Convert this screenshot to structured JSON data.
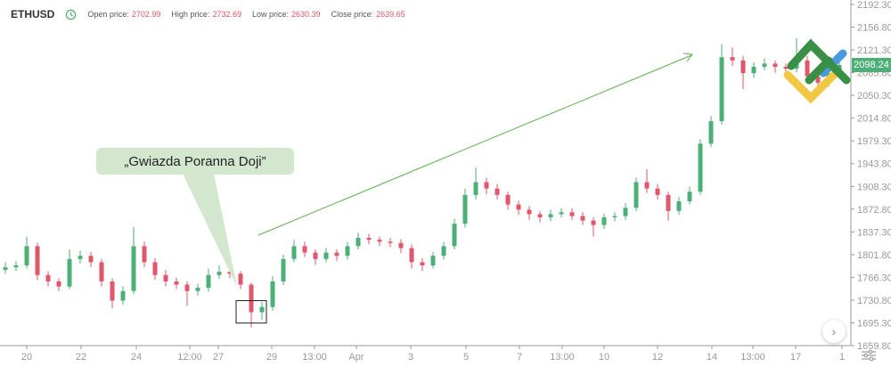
{
  "header": {
    "symbol": "ETHUSD",
    "open_label": "Open price:",
    "open_value": "2702.99",
    "high_label": "High price:",
    "high_value": "2732.69",
    "low_label": "Low price:",
    "low_value": "2630.39",
    "close_label": "Close price:",
    "close_value": "2639.65"
  },
  "annotation": {
    "callout_text": "„Gwiazda Poranna Doji”"
  },
  "current_price": "2098.24",
  "colors": {
    "up": "#4caf76",
    "down": "#e0566a",
    "arrow": "#5aae4a",
    "callout_bg": "#d3e7cf"
  },
  "icons": {
    "clock": "clock-icon",
    "scroll": "chevron-right-icon",
    "settings": "sliders-icon"
  },
  "chart_data": {
    "type": "candlestick",
    "y_ticks": [
      "2192.30",
      "2156.80",
      "2121.30",
      "2085.80",
      "2050.30",
      "2014.80",
      "1979.30",
      "1943.80",
      "1908.30",
      "1872.80",
      "1837.30",
      "1801.80",
      "1766.30",
      "1730.80",
      "1695.30",
      "1659.80"
    ],
    "ylim": [
      1659.8,
      2192.3
    ],
    "x_ticks": [
      "20",
      "22",
      "24",
      "12:00",
      "27",
      "29",
      "13:00",
      "Apr",
      "3",
      "5",
      "7",
      "13:00",
      "10",
      "12",
      "14",
      "13:00",
      "17",
      "1"
    ],
    "ohlc": [
      [
        1778,
        1790,
        1772,
        1782
      ],
      [
        1782,
        1792,
        1776,
        1785
      ],
      [
        1785,
        1830,
        1780,
        1815
      ],
      [
        1815,
        1820,
        1762,
        1770
      ],
      [
        1770,
        1776,
        1752,
        1760
      ],
      [
        1760,
        1765,
        1745,
        1752
      ],
      [
        1752,
        1810,
        1748,
        1795
      ],
      [
        1795,
        1808,
        1788,
        1800
      ],
      [
        1800,
        1806,
        1782,
        1790
      ],
      [
        1790,
        1795,
        1752,
        1760
      ],
      [
        1760,
        1765,
        1718,
        1730
      ],
      [
        1730,
        1752,
        1724,
        1745
      ],
      [
        1745,
        1845,
        1740,
        1815
      ],
      [
        1815,
        1822,
        1782,
        1790
      ],
      [
        1790,
        1796,
        1762,
        1770
      ],
      [
        1770,
        1778,
        1752,
        1760
      ],
      [
        1760,
        1766,
        1748,
        1755
      ],
      [
        1755,
        1760,
        1722,
        1745
      ],
      [
        1745,
        1756,
        1738,
        1750
      ],
      [
        1750,
        1780,
        1744,
        1770
      ],
      [
        1770,
        1785,
        1764,
        1775
      ],
      [
        1775,
        1782,
        1765,
        1772
      ],
      [
        1772,
        1776,
        1748,
        1755
      ],
      [
        1755,
        1758,
        1688,
        1712
      ],
      [
        1712,
        1728,
        1700,
        1720
      ],
      [
        1720,
        1768,
        1714,
        1760
      ],
      [
        1760,
        1802,
        1754,
        1795
      ],
      [
        1795,
        1825,
        1790,
        1815
      ],
      [
        1815,
        1822,
        1798,
        1805
      ],
      [
        1805,
        1810,
        1786,
        1795
      ],
      [
        1795,
        1812,
        1790,
        1805
      ],
      [
        1805,
        1810,
        1792,
        1800
      ],
      [
        1800,
        1822,
        1794,
        1815
      ],
      [
        1815,
        1836,
        1810,
        1828
      ],
      [
        1828,
        1834,
        1818,
        1825
      ],
      [
        1825,
        1830,
        1815,
        1822
      ],
      [
        1822,
        1828,
        1814,
        1820
      ],
      [
        1820,
        1826,
        1804,
        1812
      ],
      [
        1812,
        1818,
        1780,
        1790
      ],
      [
        1790,
        1796,
        1776,
        1785
      ],
      [
        1785,
        1806,
        1780,
        1800
      ],
      [
        1800,
        1822,
        1794,
        1815
      ],
      [
        1815,
        1858,
        1810,
        1850
      ],
      [
        1850,
        1905,
        1844,
        1895
      ],
      [
        1895,
        1938,
        1888,
        1915
      ],
      [
        1915,
        1922,
        1896,
        1905
      ],
      [
        1905,
        1912,
        1888,
        1895
      ],
      [
        1895,
        1900,
        1872,
        1880
      ],
      [
        1880,
        1886,
        1864,
        1872
      ],
      [
        1872,
        1878,
        1856,
        1865
      ],
      [
        1865,
        1870,
        1852,
        1860
      ],
      [
        1860,
        1872,
        1854,
        1865
      ],
      [
        1865,
        1874,
        1860,
        1868
      ],
      [
        1868,
        1874,
        1856,
        1862
      ],
      [
        1862,
        1868,
        1848,
        1855
      ],
      [
        1855,
        1860,
        1830,
        1848
      ],
      [
        1848,
        1866,
        1842,
        1860
      ],
      [
        1860,
        1868,
        1854,
        1862
      ],
      [
        1862,
        1882,
        1856,
        1875
      ],
      [
        1875,
        1922,
        1870,
        1915
      ],
      [
        1915,
        1935,
        1898,
        1905
      ],
      [
        1905,
        1912,
        1888,
        1895
      ],
      [
        1895,
        1900,
        1855,
        1870
      ],
      [
        1870,
        1892,
        1864,
        1885
      ],
      [
        1885,
        1908,
        1880,
        1900
      ],
      [
        1900,
        1982,
        1895,
        1975
      ],
      [
        1975,
        2018,
        1970,
        2010
      ],
      [
        2010,
        2130,
        2005,
        2110
      ],
      [
        2110,
        2125,
        2096,
        2105
      ],
      [
        2105,
        2112,
        2060,
        2085
      ],
      [
        2085,
        2102,
        2078,
        2095
      ],
      [
        2095,
        2108,
        2090,
        2100
      ],
      [
        2100,
        2105,
        2086,
        2095
      ],
      [
        2095,
        2100,
        2084,
        2092
      ],
      [
        2092,
        2140,
        2086,
        2105
      ],
      [
        2105,
        2112,
        2072,
        2080
      ],
      [
        2080,
        2086,
        2050,
        2070
      ],
      [
        2070,
        2092,
        2064,
        2085
      ],
      [
        2085,
        2104,
        2080,
        2098
      ]
    ],
    "pattern_box_candles": [
      22,
      24
    ],
    "grid": false
  }
}
